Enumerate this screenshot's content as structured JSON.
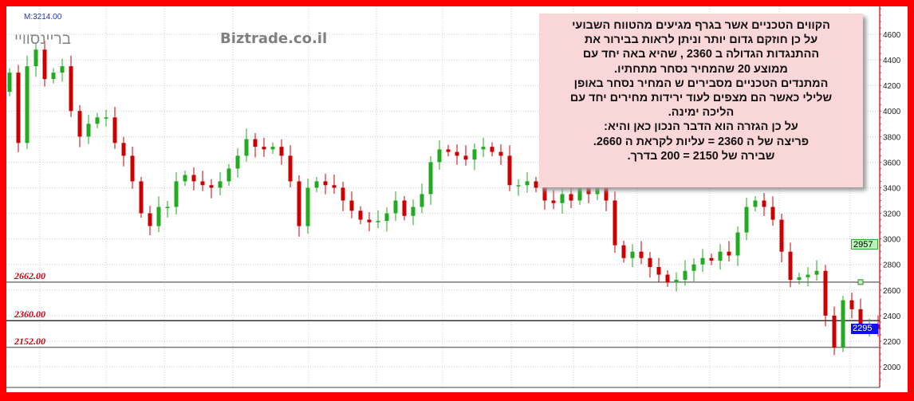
{
  "header": {
    "m_label": "M:3214.00",
    "watermark_hebrew": "בריינסוויי",
    "watermark_site": "Biztrade.co.il"
  },
  "levels": [
    {
      "label": "2662.00",
      "value": 2662
    },
    {
      "label": "2360.00",
      "value": 2360
    },
    {
      "label": "2152.00",
      "value": 2152
    }
  ],
  "note": {
    "lines": [
      "הקווים הטכניים אשר  בגרף מגיעים מהטווח השבועי",
      "על כן חוזקם גדום יותר וניתן לראות בבירור את",
      "ההתנגדות הגדולה ב 2360 , שהיא באה יחד עם",
      "ממוצע 20  שהמחיר נסחר מתחתיו.",
      "המתנדים הטכניים מסבירים ש המחיר נסחר באופן",
      "שלילי כאשר  הם מצפים  לעוד ירידות מחירים יחד עם",
      "הליכה ימינה.",
      "על כן הגזרה הוא הדבר הנכון כאן והיא:",
      "פריצה של ה  2360 = עליות לקראת ה 2660.",
      "שבירה של 2150 = 200 בדרך."
    ]
  },
  "colors": {
    "border": "#ff0000",
    "up": "#22aa22",
    "down": "#cc0000",
    "note_bg": "#f9d6d8",
    "level_text": "#d00010",
    "last_price_bg": "#1010ee",
    "marker_bg": "#b8f0b8"
  },
  "chart_data": {
    "type": "candlestick",
    "y_ticks": [
      "2000",
      "2200",
      "2400",
      "2600",
      "2800",
      "3000",
      "3200",
      "3400",
      "3600",
      "3800",
      "4000",
      "4200",
      "4400",
      "4600"
    ],
    "ylim": [
      1860,
      4880
    ],
    "grid": true,
    "price_tags": [
      {
        "label": "2957",
        "value": 2957,
        "kind": "marker"
      },
      {
        "label": "2295",
        "value": 2295,
        "kind": "last"
      }
    ],
    "first_open": 4150,
    "close": [
      4300,
      3750,
      4350,
      4480,
      4250,
      4300,
      4350,
      4000,
      3800,
      3900,
      3950,
      3950,
      3750,
      3650,
      3450,
      3200,
      3100,
      3250,
      3250,
      3450,
      3500,
      3450,
      3420,
      3400,
      3450,
      3550,
      3650,
      3780,
      3720,
      3700,
      3720,
      3650,
      3450,
      3100,
      3400,
      3450,
      3420,
      3400,
      3300,
      3220,
      3150,
      3130,
      3140,
      3200,
      3300,
      3180,
      3250,
      3350,
      3600,
      3700,
      3680,
      3650,
      3620,
      3700,
      3720,
      3680,
      3650,
      3420,
      3420,
      3450,
      3400,
      3300,
      3280,
      3350,
      3300,
      3400,
      3350,
      3400,
      3300,
      2950,
      2850,
      2900,
      2850,
      2780,
      2720,
      2660,
      2680,
      2750,
      2800,
      2850,
      2830,
      2900,
      2870,
      3050,
      3250,
      3300,
      3250,
      3150,
      2900,
      2680,
      2700,
      2720,
      2750,
      2400,
      2150,
      2520,
      2450,
      2320,
      2330,
      2295
    ],
    "marker_level": 2662
  }
}
